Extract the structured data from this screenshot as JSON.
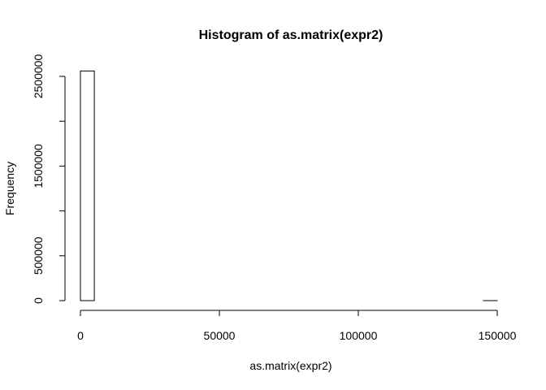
{
  "chart_data": {
    "type": "bar",
    "title": "Histogram of as.matrix(expr2)",
    "xlabel": "as.matrix(expr2)",
    "ylabel": "Frequency",
    "bins": [
      {
        "start": 0,
        "end": 5000,
        "count": 2560000
      },
      {
        "start": 5000,
        "end": 10000,
        "count": 0
      },
      {
        "start": 10000,
        "end": 15000,
        "count": 0
      },
      {
        "start": 15000,
        "end": 20000,
        "count": 0
      },
      {
        "start": 20000,
        "end": 25000,
        "count": 0
      },
      {
        "start": 25000,
        "end": 30000,
        "count": 0
      },
      {
        "start": 30000,
        "end": 35000,
        "count": 0
      },
      {
        "start": 35000,
        "end": 40000,
        "count": 0
      },
      {
        "start": 40000,
        "end": 45000,
        "count": 0
      },
      {
        "start": 45000,
        "end": 50000,
        "count": 0
      },
      {
        "start": 50000,
        "end": 55000,
        "count": 0
      },
      {
        "start": 55000,
        "end": 60000,
        "count": 0
      },
      {
        "start": 60000,
        "end": 65000,
        "count": 0
      },
      {
        "start": 65000,
        "end": 70000,
        "count": 0
      },
      {
        "start": 70000,
        "end": 75000,
        "count": 0
      },
      {
        "start": 75000,
        "end": 80000,
        "count": 0
      },
      {
        "start": 80000,
        "end": 85000,
        "count": 0
      },
      {
        "start": 85000,
        "end": 90000,
        "count": 0
      },
      {
        "start": 90000,
        "end": 95000,
        "count": 0
      },
      {
        "start": 95000,
        "end": 100000,
        "count": 0
      },
      {
        "start": 100000,
        "end": 105000,
        "count": 0
      },
      {
        "start": 105000,
        "end": 110000,
        "count": 0
      },
      {
        "start": 110000,
        "end": 115000,
        "count": 0
      },
      {
        "start": 115000,
        "end": 120000,
        "count": 0
      },
      {
        "start": 120000,
        "end": 125000,
        "count": 0
      },
      {
        "start": 125000,
        "end": 130000,
        "count": 0
      },
      {
        "start": 130000,
        "end": 135000,
        "count": 0
      },
      {
        "start": 135000,
        "end": 140000,
        "count": 0
      },
      {
        "start": 140000,
        "end": 145000,
        "count": 0
      },
      {
        "start": 145000,
        "end": 150000,
        "count": 1
      }
    ],
    "xticks": [
      {
        "value": 0,
        "label": "0"
      },
      {
        "value": 50000,
        "label": "50000"
      },
      {
        "value": 100000,
        "label": "100000"
      },
      {
        "value": 150000,
        "label": "150000"
      }
    ],
    "yticks": [
      {
        "value": 0,
        "label": "0"
      },
      {
        "value": 500000,
        "label": "500000"
      },
      {
        "value": 1000000,
        "label": ""
      },
      {
        "value": 1500000,
        "label": "1500000"
      },
      {
        "value": 2000000,
        "label": ""
      },
      {
        "value": 2500000,
        "label": "2500000"
      }
    ],
    "xlim": [
      0,
      150000
    ],
    "ylim": [
      0,
      2500000
    ],
    "grid": false,
    "bar_fill": "#ffffff",
    "bar_stroke": "#000000"
  }
}
